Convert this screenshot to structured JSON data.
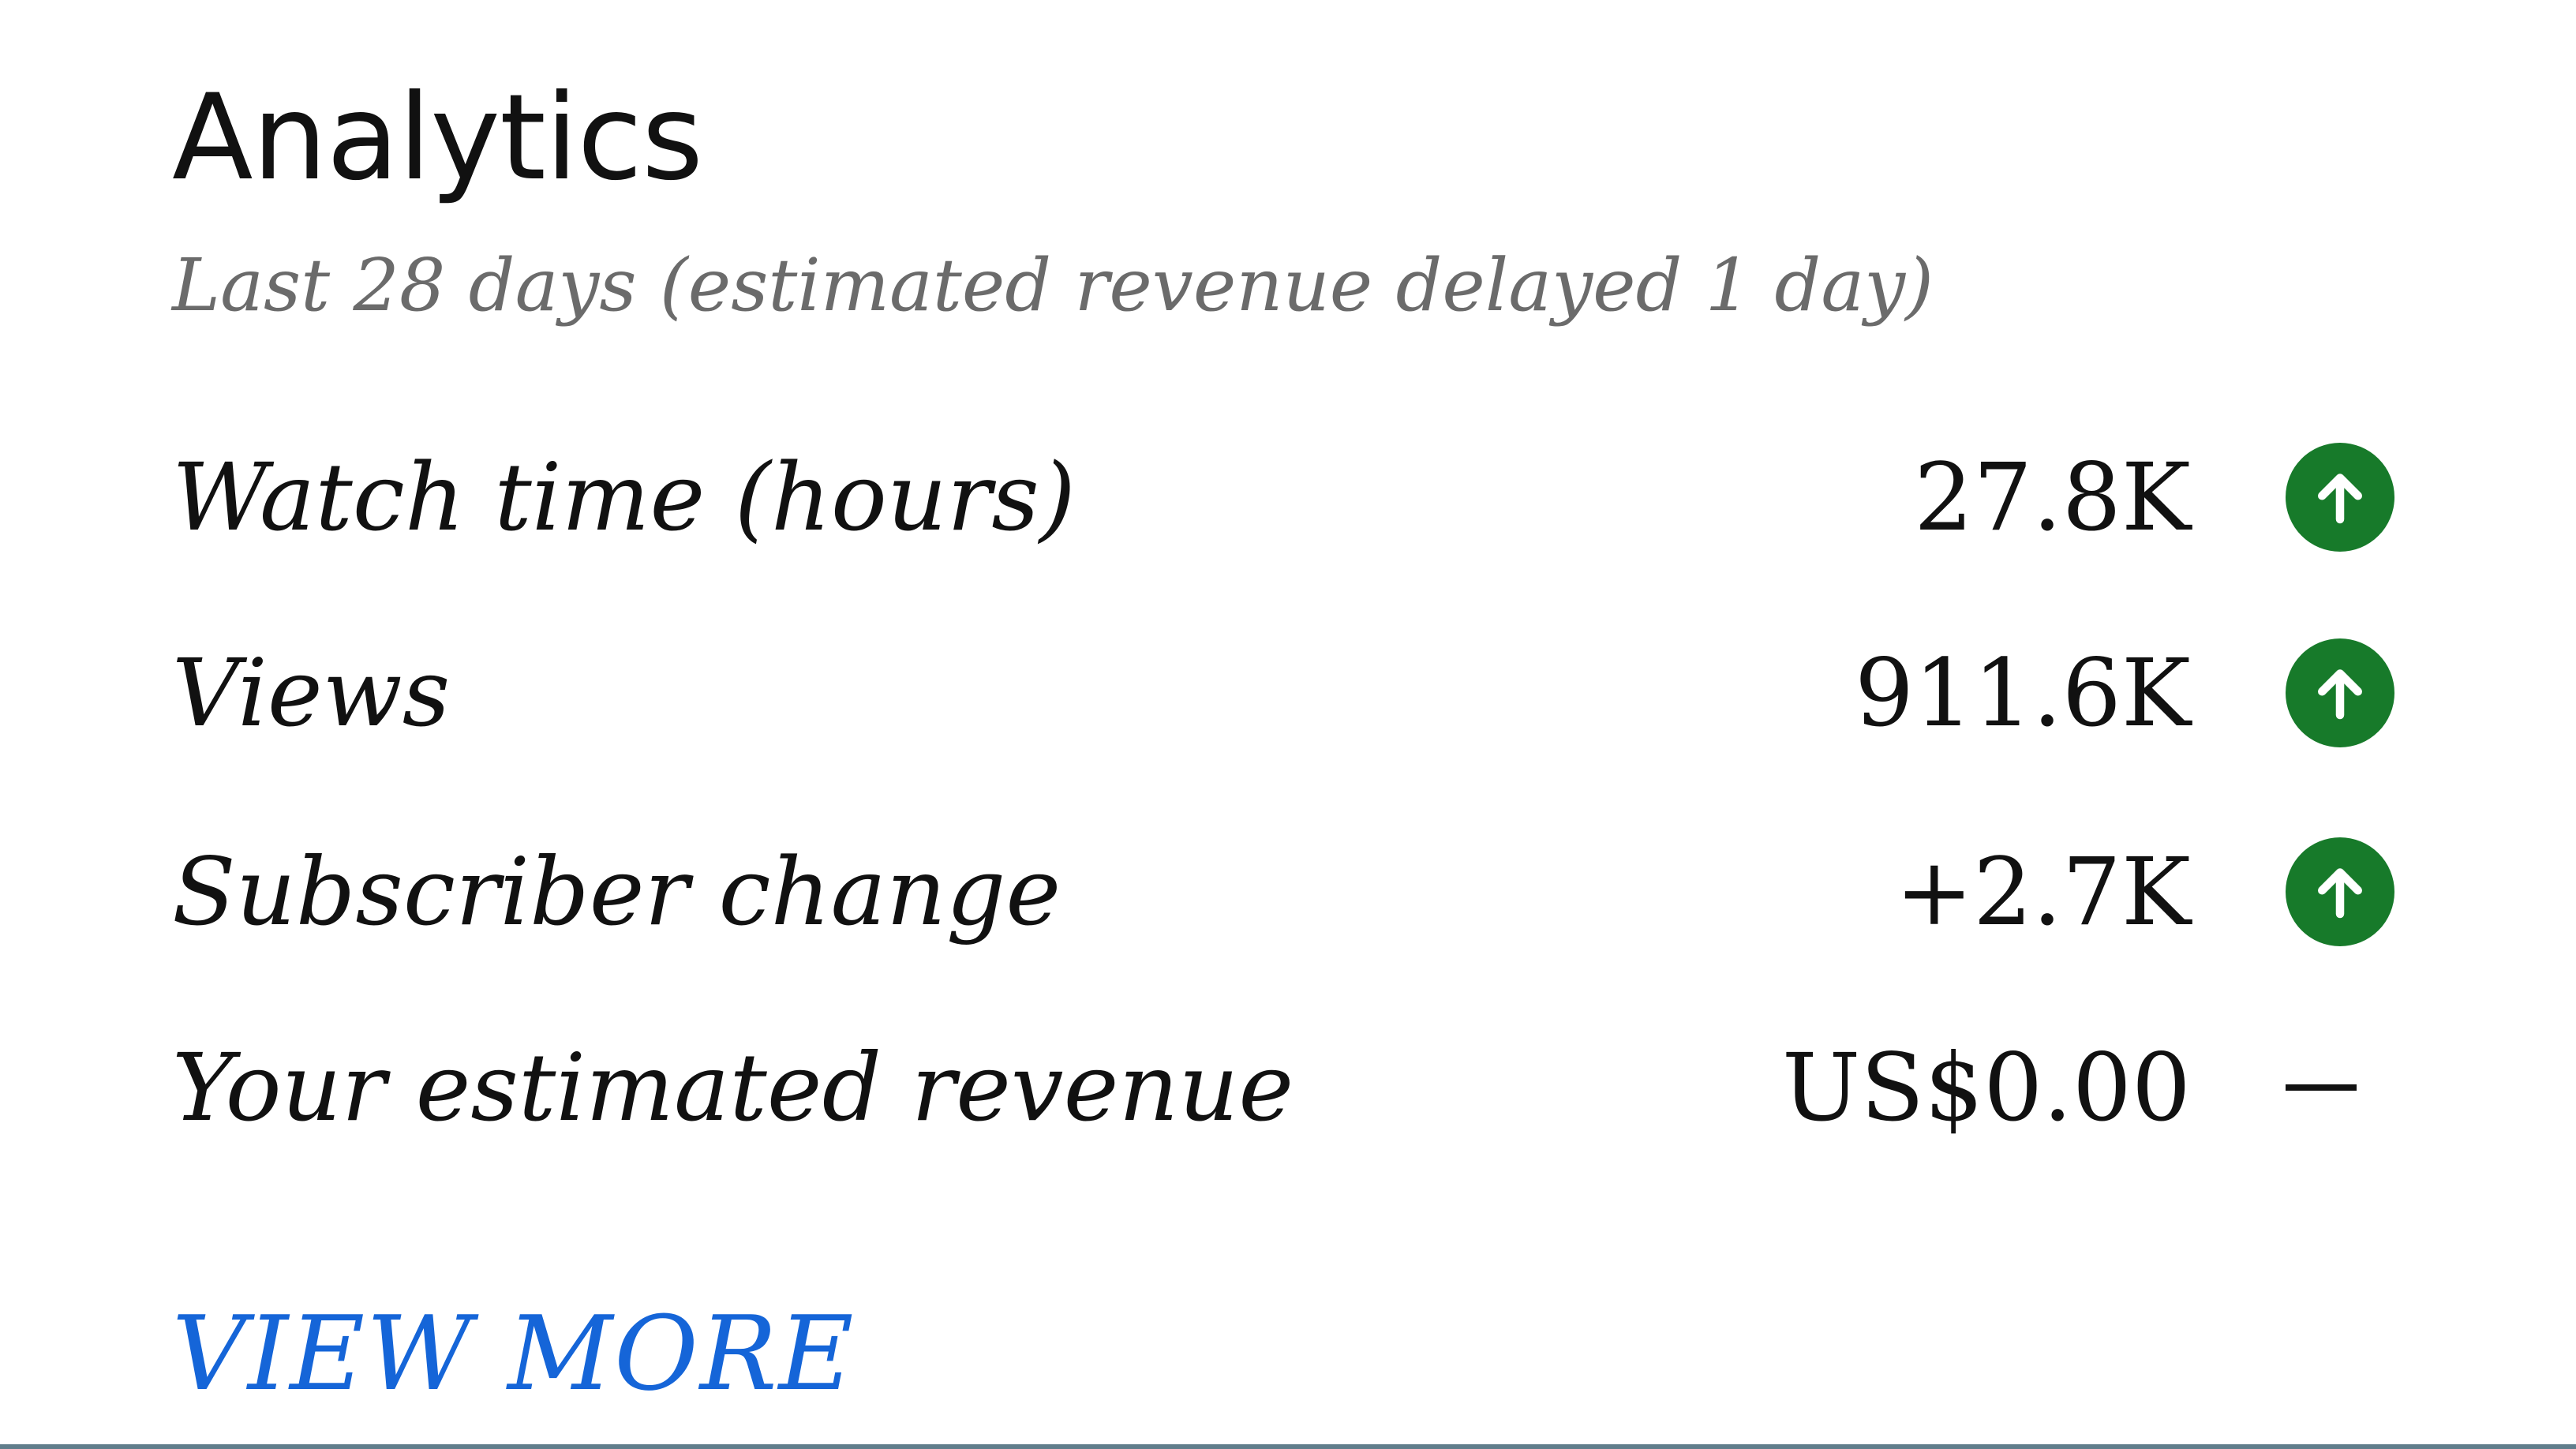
{
  "card": {
    "title": "Analytics",
    "subtitle": "Last 28 days (estimated revenue delayed 1 day)",
    "metrics": [
      {
        "label": "Watch time (hours)",
        "value": "27.8K",
        "trend": "up",
        "trend_icon": "arrow-up-circle-icon"
      },
      {
        "label": "Views",
        "value": "911.6K",
        "trend": "up",
        "trend_icon": "arrow-up-circle-icon"
      },
      {
        "label": "Subscriber change",
        "value": "+2.7K",
        "trend": "up",
        "trend_icon": "arrow-up-circle-icon"
      },
      {
        "label": "Your estimated revenue",
        "value": "US$0.00",
        "trend": "none",
        "trend_icon": "dash-icon"
      }
    ],
    "view_more_label": "VIEW MORE"
  },
  "colors": {
    "trend_up": "#177a2a",
    "link": "#1565d8",
    "subtitle": "#6b6b6b",
    "text": "#111111"
  }
}
